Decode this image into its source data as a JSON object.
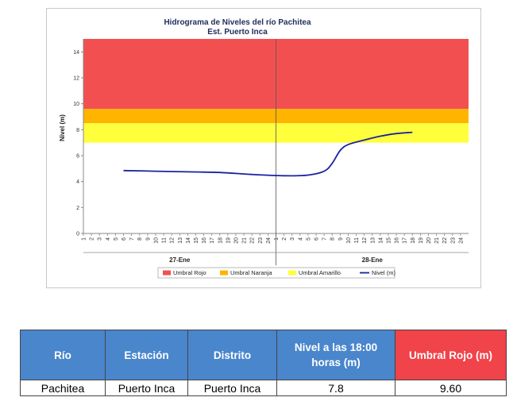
{
  "chart_data": {
    "type": "line",
    "title": "Hidrograma de Niveles del río Pachitea",
    "subtitle": "Est. Puerto Inca",
    "ylabel": "Nivel (m)",
    "xlabel": "",
    "ylim": [
      0,
      15
    ],
    "yticks": [
      0,
      2,
      4,
      6,
      8,
      10,
      12,
      14
    ],
    "hours": [
      "1",
      "2",
      "3",
      "4",
      "5",
      "6",
      "7",
      "8",
      "9",
      "10",
      "11",
      "12",
      "13",
      "14",
      "15",
      "16",
      "17",
      "18",
      "19",
      "20",
      "21",
      "22",
      "23",
      "24"
    ],
    "days": [
      "27-Ene",
      "28-Ene"
    ],
    "grid": false,
    "legend_position": "bottom",
    "bands": [
      {
        "name": "Umbral Rojo",
        "from": 9.6,
        "to": 15,
        "color": "#f25050"
      },
      {
        "name": "Umbral Naranja",
        "from": 8.5,
        "to": 9.6,
        "color": "#ffb400"
      },
      {
        "name": "Umbral Amarillo",
        "from": 7.0,
        "to": 8.5,
        "color": "#ffff3c"
      }
    ],
    "series": [
      {
        "name": "Nivel (m)",
        "color": "#1a23a0",
        "points": [
          {
            "day": "27-Ene",
            "hour": 6,
            "y": 4.85
          },
          {
            "day": "27-Ene",
            "hour": 10,
            "y": 4.8
          },
          {
            "day": "27-Ene",
            "hour": 14,
            "y": 4.75
          },
          {
            "day": "27-Ene",
            "hour": 18,
            "y": 4.7
          },
          {
            "day": "27-Ene",
            "hour": 22,
            "y": 4.55
          },
          {
            "day": "28-Ene",
            "hour": 2,
            "y": 4.45
          },
          {
            "day": "28-Ene",
            "hour": 5,
            "y": 4.5
          },
          {
            "day": "28-Ene",
            "hour": 7,
            "y": 4.8
          },
          {
            "day": "28-Ene",
            "hour": 8,
            "y": 5.4
          },
          {
            "day": "28-Ene",
            "hour": 9,
            "y": 6.4
          },
          {
            "day": "28-Ene",
            "hour": 10,
            "y": 6.85
          },
          {
            "day": "28-Ene",
            "hour": 12,
            "y": 7.2
          },
          {
            "day": "28-Ene",
            "hour": 14,
            "y": 7.5
          },
          {
            "day": "28-Ene",
            "hour": 16,
            "y": 7.7
          },
          {
            "day": "28-Ene",
            "hour": 18,
            "y": 7.8
          }
        ]
      }
    ]
  },
  "table": {
    "headers": [
      "Río",
      "Estación",
      "Distrito",
      "Nivel a las 18:00 horas (m)",
      "Umbral Rojo (m)"
    ],
    "header_colors": [
      "#4a86cc",
      "#4a86cc",
      "#4a86cc",
      "#4a86cc",
      "#f0434a"
    ],
    "rows": [
      [
        "Pachitea",
        "Puerto Inca",
        "Puerto Inca",
        "7.8",
        "9.60"
      ]
    ]
  }
}
